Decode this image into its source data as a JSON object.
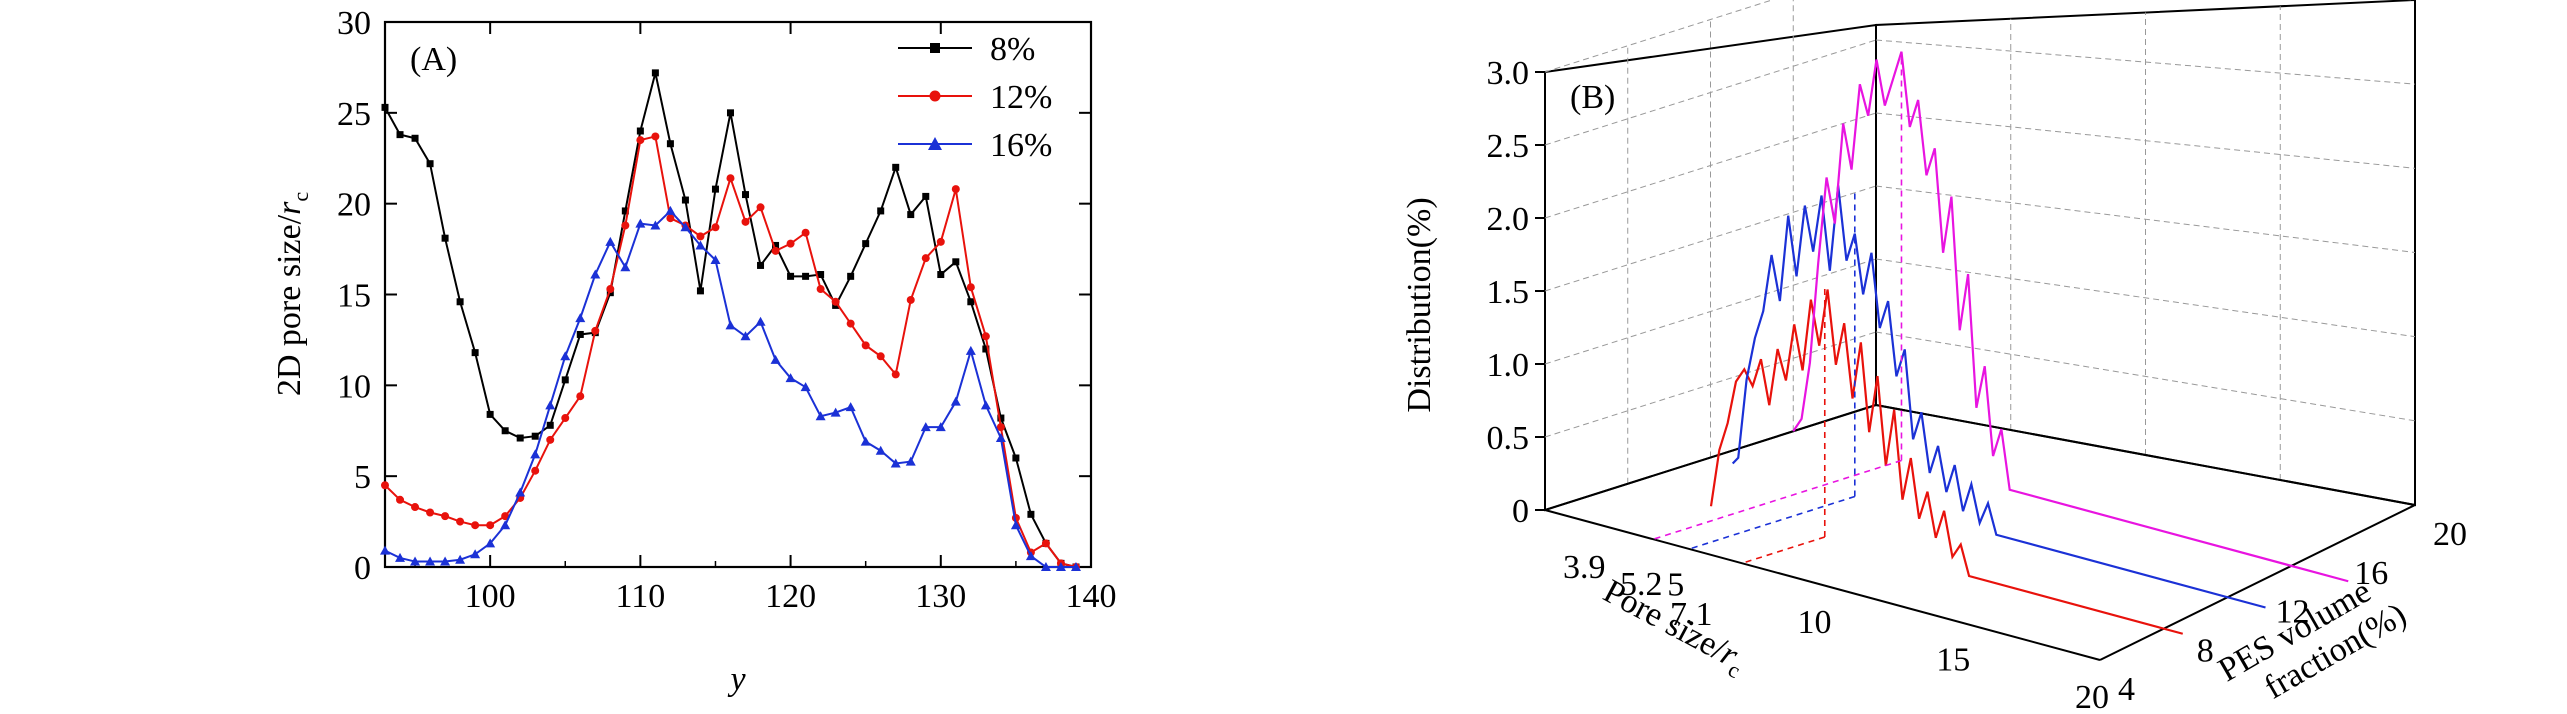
{
  "chart_data": [
    {
      "panel_label": "(A)",
      "type": "line",
      "xlabel": "y",
      "ylabel_main": "2D pore size/",
      "ylabel_var": "r",
      "ylabel_sub": "c",
      "xlim": [
        93,
        140
      ],
      "ylim": [
        0,
        30
      ],
      "xticks": [
        "100",
        "110",
        "120",
        "130",
        "140"
      ],
      "yticks": [
        "0",
        "5",
        "10",
        "15",
        "20",
        "25",
        "30"
      ],
      "legend_position": "top-right",
      "series": [
        {
          "name": "8%",
          "color": "#000000",
          "marker": "square",
          "x": [
            93,
            94,
            95,
            96,
            97,
            98,
            99,
            100,
            101,
            102,
            103,
            104,
            105,
            106,
            107,
            108,
            109,
            110,
            111,
            112,
            113,
            114,
            115,
            116,
            117,
            118,
            119,
            120,
            121,
            122,
            123,
            124,
            125,
            126,
            127,
            128,
            129,
            130,
            131,
            132,
            133,
            134,
            135,
            136,
            137,
            138,
            139
          ],
          "y": [
            25.3,
            23.8,
            23.6,
            22.2,
            18.1,
            14.6,
            11.8,
            8.4,
            7.5,
            7.1,
            7.2,
            7.8,
            10.3,
            12.8,
            12.9,
            15.1,
            19.6,
            24.0,
            27.2,
            23.3,
            20.2,
            15.2,
            20.8,
            25.0,
            20.5,
            16.6,
            17.7,
            16.0,
            16.0,
            16.1,
            14.4,
            16.0,
            17.8,
            19.6,
            22.0,
            19.4,
            20.4,
            16.1,
            16.8,
            14.6,
            12.0,
            8.2,
            6.0,
            2.9,
            1.3,
            0.2,
            0.0
          ]
        },
        {
          "name": "12%",
          "color": "#e8120c",
          "marker": "circle",
          "x": [
            93,
            94,
            95,
            96,
            97,
            98,
            99,
            100,
            101,
            102,
            103,
            104,
            105,
            106,
            107,
            108,
            109,
            110,
            111,
            112,
            113,
            114,
            115,
            116,
            117,
            118,
            119,
            120,
            121,
            122,
            123,
            124,
            125,
            126,
            127,
            128,
            129,
            130,
            131,
            132,
            133,
            134,
            135,
            136,
            137,
            138,
            139
          ],
          "y": [
            4.5,
            3.7,
            3.3,
            3.0,
            2.8,
            2.5,
            2.3,
            2.3,
            2.8,
            3.8,
            5.3,
            7.0,
            8.2,
            9.4,
            13.0,
            15.3,
            18.8,
            23.5,
            23.7,
            19.2,
            18.8,
            18.2,
            18.7,
            21.4,
            19.0,
            19.8,
            17.4,
            17.8,
            18.4,
            15.3,
            14.6,
            13.4,
            12.2,
            11.6,
            10.6,
            14.7,
            17.0,
            17.9,
            20.8,
            15.4,
            12.7,
            7.7,
            2.7,
            0.8,
            1.3,
            0.2,
            0.0
          ]
        },
        {
          "name": "16%",
          "color": "#1b31d6",
          "marker": "triangle",
          "x": [
            93,
            94,
            95,
            96,
            97,
            98,
            99,
            100,
            101,
            102,
            103,
            104,
            105,
            106,
            107,
            108,
            109,
            110,
            111,
            112,
            113,
            114,
            115,
            116,
            117,
            118,
            119,
            120,
            121,
            122,
            123,
            124,
            125,
            126,
            127,
            128,
            129,
            130,
            131,
            132,
            133,
            134,
            135,
            136,
            137,
            138,
            139
          ],
          "y": [
            0.9,
            0.5,
            0.3,
            0.3,
            0.3,
            0.4,
            0.7,
            1.3,
            2.3,
            4.1,
            6.2,
            8.9,
            11.6,
            13.7,
            16.1,
            17.9,
            16.5,
            18.9,
            18.8,
            19.6,
            18.7,
            17.7,
            16.9,
            13.3,
            12.7,
            13.5,
            11.4,
            10.4,
            9.9,
            8.3,
            8.5,
            8.8,
            6.9,
            6.4,
            5.7,
            5.8,
            7.7,
            7.7,
            9.1,
            11.9,
            8.9,
            7.1,
            2.3,
            0.6,
            0.0,
            0.0,
            0.0
          ]
        }
      ]
    },
    {
      "panel_label": "(B)",
      "type": "line",
      "ylabel": "Distribution(%)",
      "xlabel_main": "Pore size/",
      "xlabel_var": "r",
      "xlabel_sub": "c",
      "depth_label_1": "PES volume",
      "depth_label_2": "fraction(%)",
      "zticks": [
        "0",
        "0.5",
        "1.0",
        "1.5",
        "2.0",
        "2.5",
        "3.0"
      ],
      "xticks": [
        "5",
        "10",
        "15",
        "20"
      ],
      "depth_ticks": [
        "4",
        "8",
        "12",
        "16",
        "20"
      ],
      "annotations": [
        "3.9",
        "5.2",
        "7.1"
      ],
      "zlim": [
        0,
        3.0
      ],
      "xlim": [
        0,
        20
      ],
      "depth_lim": [
        4,
        20
      ],
      "series": [
        {
          "name": "",
          "depth": 8,
          "color": "#e8120c",
          "peak_x": 7.1,
          "x": [
            3.0,
            3.3,
            3.6,
            3.9,
            4.2,
            4.5,
            4.8,
            5.1,
            5.4,
            5.7,
            6.0,
            6.3,
            6.6,
            6.9,
            7.2,
            7.5,
            7.8,
            8.1,
            8.4,
            8.7,
            9.0,
            9.3,
            9.6,
            9.9,
            10.2,
            10.5,
            10.8,
            11.1,
            11.4,
            11.7,
            12.0,
            12.3
          ],
          "y": [
            0.0,
            0.4,
            0.6,
            0.9,
            1.0,
            0.9,
            1.1,
            0.8,
            1.2,
            1.0,
            1.4,
            1.1,
            1.6,
            1.3,
            1.7,
            1.2,
            1.5,
            1.0,
            1.4,
            0.8,
            1.2,
            0.6,
            1.0,
            0.4,
            0.7,
            0.3,
            0.5,
            0.2,
            0.4,
            0.1,
            0.2,
            0.0
          ]
        },
        {
          "name": "",
          "depth": 12,
          "color": "#1b31d6",
          "peak_x": 5.2,
          "x": [
            0.8,
            1.0,
            1.3,
            1.6,
            1.9,
            2.2,
            2.5,
            2.8,
            3.1,
            3.4,
            3.7,
            4.0,
            4.3,
            4.6,
            4.9,
            5.2,
            5.5,
            5.8,
            6.1,
            6.4,
            6.7,
            7.0,
            7.3,
            7.6,
            7.9,
            8.2,
            8.5,
            8.8,
            9.1,
            9.4,
            9.7,
            10.0,
            10.3
          ],
          "y": [
            0.0,
            0.05,
            0.6,
            0.9,
            1.1,
            1.5,
            1.2,
            1.8,
            1.4,
            1.9,
            1.6,
            2.0,
            1.5,
            2.1,
            1.6,
            1.8,
            1.4,
            1.7,
            1.2,
            1.4,
            0.9,
            1.1,
            0.5,
            0.7,
            0.3,
            0.5,
            0.2,
            0.4,
            0.1,
            0.3,
            0.05,
            0.2,
            0.0
          ]
        },
        {
          "name": "",
          "depth": 16,
          "color": "#e814e0",
          "peak_x": 3.9,
          "x": [
            0.0,
            0.3,
            0.6,
            0.9,
            1.2,
            1.5,
            1.8,
            2.1,
            2.4,
            2.7,
            3.0,
            3.3,
            3.6,
            3.9,
            4.2,
            4.5,
            4.8,
            5.1,
            5.4,
            5.7,
            6.0,
            6.3,
            6.6,
            6.9,
            7.2,
            7.5,
            7.8
          ],
          "y": [
            0.0,
            0.1,
            0.5,
            1.2,
            1.8,
            1.5,
            2.2,
            1.9,
            2.5,
            2.3,
            2.7,
            2.4,
            2.6,
            2.8,
            2.3,
            2.5,
            2.0,
            2.2,
            1.5,
            1.9,
            1.0,
            1.4,
            0.5,
            0.8,
            0.2,
            0.4,
            0.0
          ]
        }
      ]
    }
  ]
}
